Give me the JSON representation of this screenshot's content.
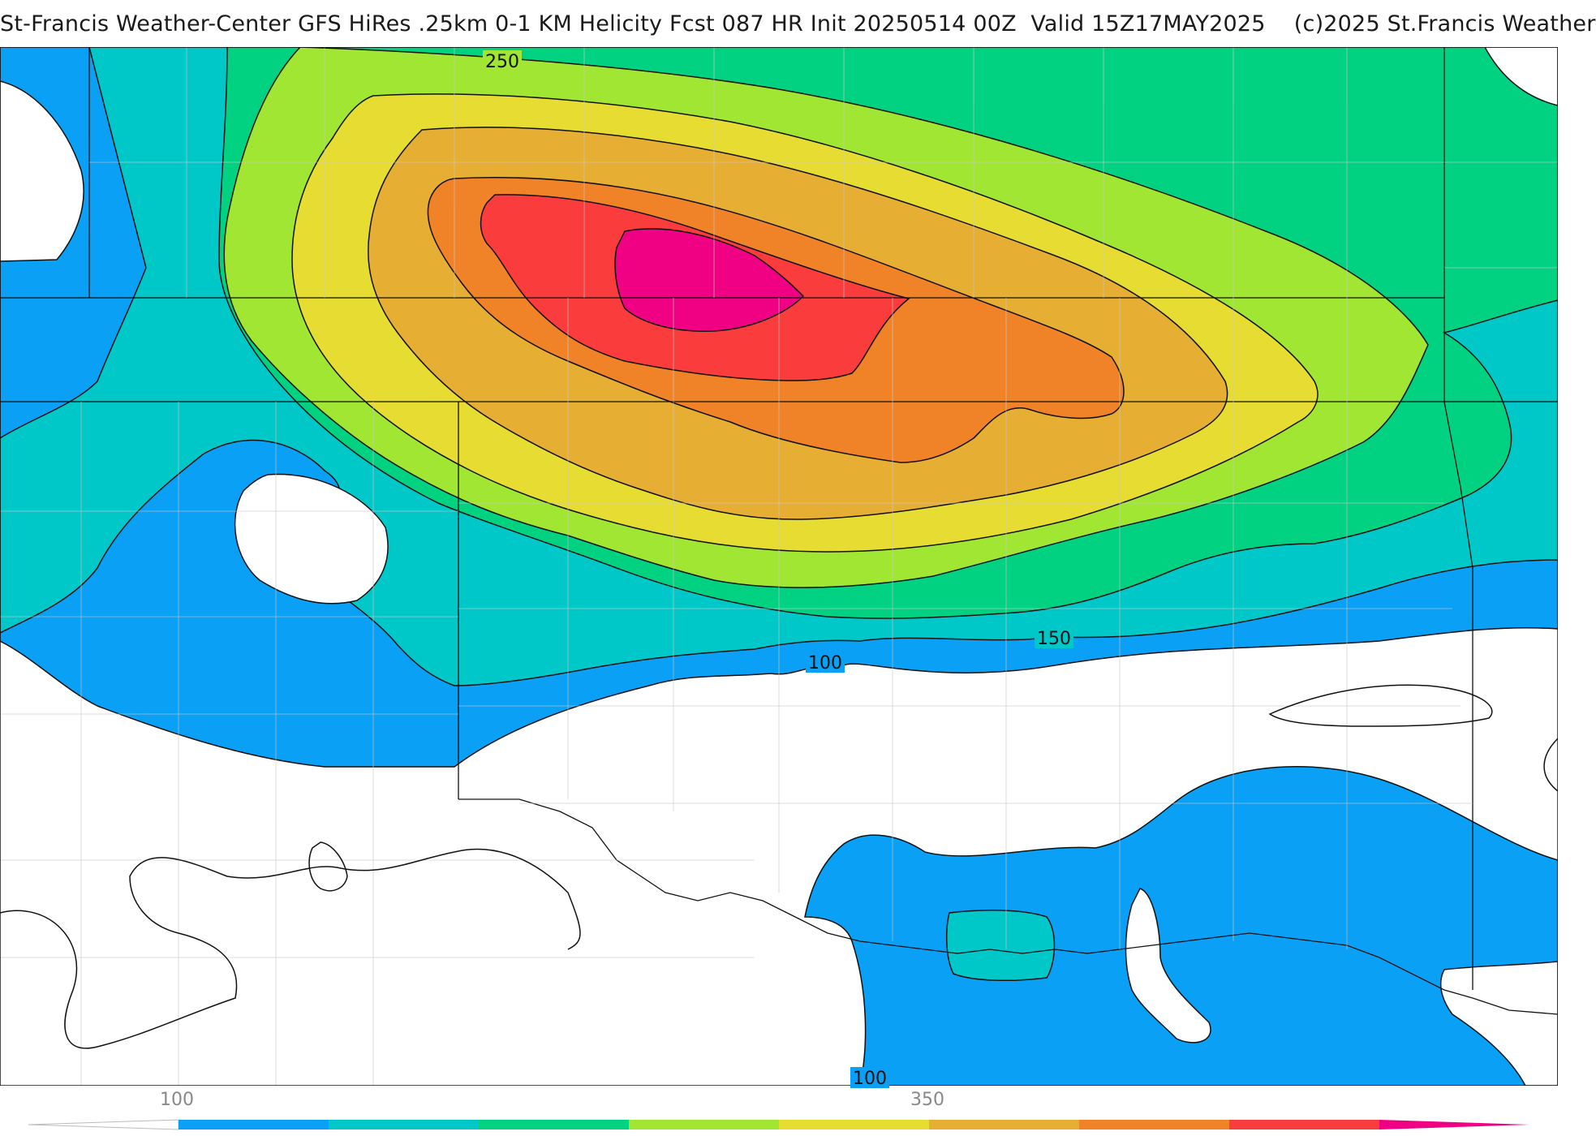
{
  "header": {
    "title": "St-Francis Weather-Center GFS HiRes .25km 0-1 KM Helicity Fcst 087 HR Init 20250514 00Z  Valid 15Z17MAY2025    (c)2025 St.Francis Weather"
  },
  "contour_labels": [
    "250",
    "150",
    "100",
    "100"
  ],
  "colorbar": {
    "tick_labels": [
      "100",
      "350"
    ],
    "colors": [
      "#0aa0f5",
      "#00c8c8",
      "#00d282",
      "#a0e632",
      "#e6dc32",
      "#e6ae32",
      "#f08228",
      "#fa3c3c",
      "#f00082"
    ]
  },
  "fill_colors": {
    "c100": "#0aa0f5",
    "c150": "#00c8c8",
    "c200": "#00d282",
    "c250": "#a0e632",
    "c300": "#e6dc32",
    "c350": "#e6ae32",
    "c400": "#f08228",
    "c450": "#fa3c3c",
    "c500": "#f00082"
  }
}
